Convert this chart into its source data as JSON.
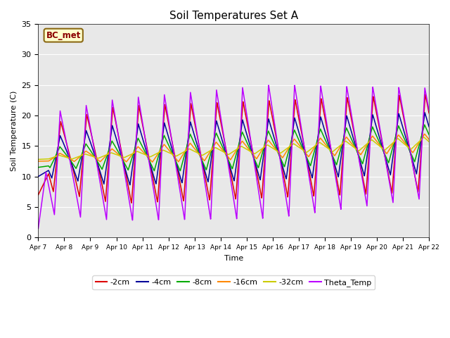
{
  "title": "Soil Temperatures Set A",
  "xlabel": "Time",
  "ylabel": "Soil Temperature (C)",
  "xlim": [
    0,
    15
  ],
  "ylim": [
    0,
    35
  ],
  "yticks": [
    0,
    5,
    10,
    15,
    20,
    25,
    30,
    35
  ],
  "xtick_labels": [
    "Apr 7",
    "Apr 8",
    "Apr 9",
    "Apr 10",
    "Apr 11",
    "Apr 12",
    "Apr 13",
    "Apr 14",
    "Apr 15",
    "Apr 16",
    "Apr 17",
    "Apr 18",
    "Apr 19",
    "Apr 20",
    "Apr 21",
    "Apr 22"
  ],
  "annotation_text": "BC_met",
  "bg_color": "#e8e8e8",
  "series": [
    {
      "label": "-2cm",
      "color": "#dd0000"
    },
    {
      "label": "-4cm",
      "color": "#000099"
    },
    {
      "label": "-8cm",
      "color": "#00aa00"
    },
    {
      "label": "-16cm",
      "color": "#ff8800"
    },
    {
      "label": "-32cm",
      "color": "#cccc00"
    },
    {
      "label": "Theta_Temp",
      "color": "#bb00ff"
    }
  ]
}
